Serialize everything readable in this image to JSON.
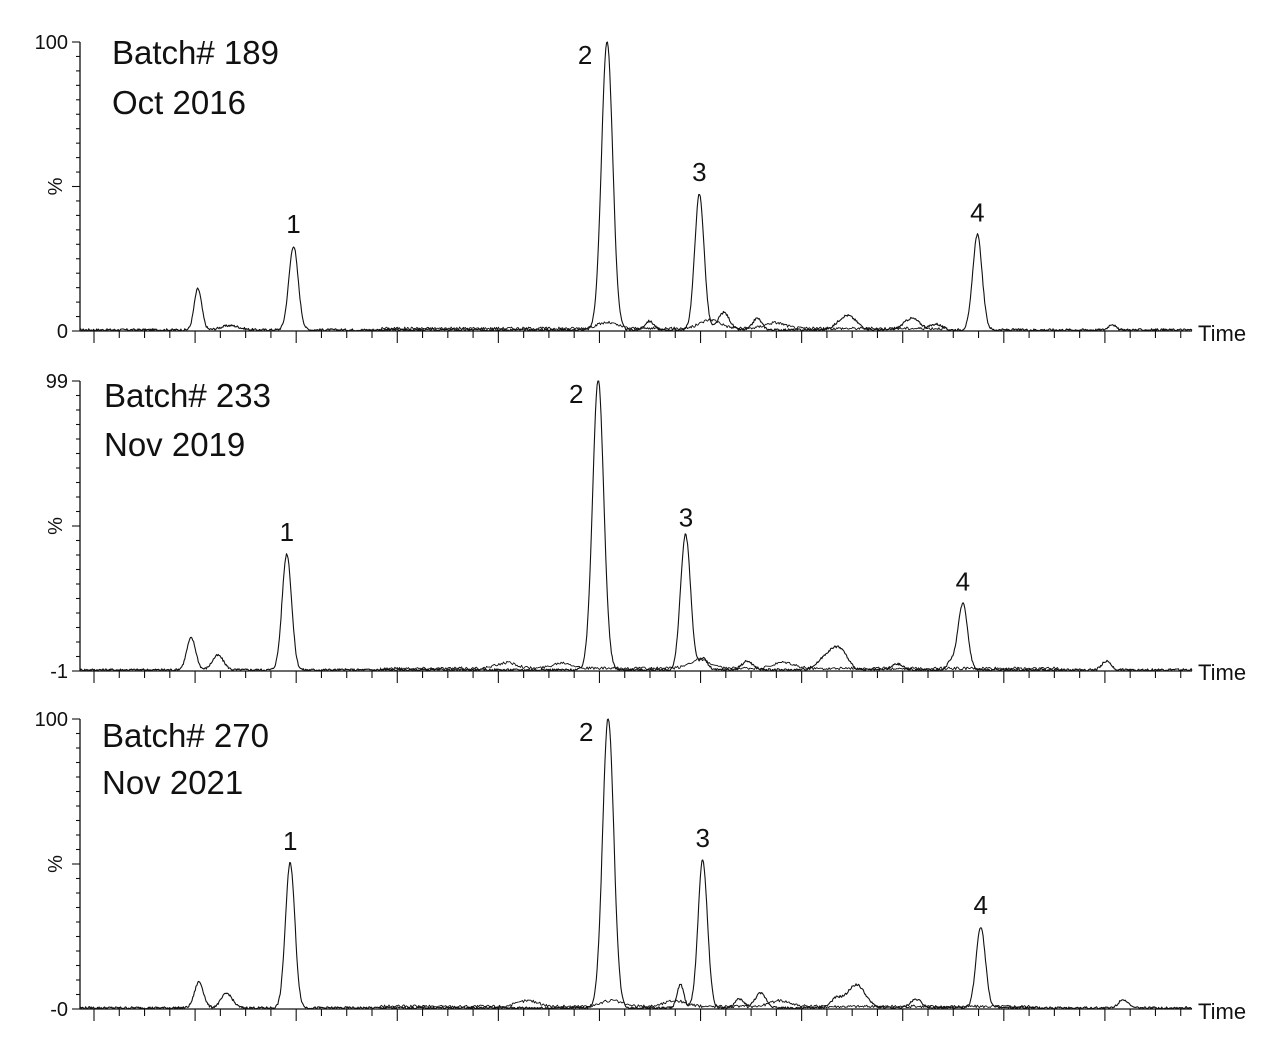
{
  "chart_data": [
    {
      "type": "line",
      "title": "Batch# 189",
      "subtitle": "Oct 2016",
      "xlabel": "Time",
      "ylabel": "%",
      "yticks": [
        "100",
        "0"
      ],
      "ylim": [
        0,
        100
      ],
      "xlim": [
        0,
        100
      ],
      "peaks": [
        {
          "label": "1",
          "x": 19.2,
          "height": 29
        },
        {
          "label": "2",
          "x": 47.4,
          "height": 100
        },
        {
          "label": "3",
          "x": 55.7,
          "height": 47
        },
        {
          "label": "4",
          "x": 80.7,
          "height": 33
        }
      ],
      "minor_peaks": [
        {
          "x": 10.5,
          "height": 10,
          "width": 0.3
        },
        {
          "x": 10.8,
          "height": 6,
          "width": 0.3
        },
        {
          "x": 13.5,
          "height": 1.5,
          "width": 0.8
        },
        {
          "x": 51.2,
          "height": 3,
          "width": 0.4
        },
        {
          "x": 57.9,
          "height": 6,
          "width": 0.5
        },
        {
          "x": 60.9,
          "height": 4,
          "width": 0.4
        },
        {
          "x": 69.0,
          "height": 5,
          "width": 0.8
        },
        {
          "x": 74.8,
          "height": 4,
          "width": 0.7
        },
        {
          "x": 77.0,
          "height": 2,
          "width": 0.5
        },
        {
          "x": 92.8,
          "height": 2,
          "width": 0.3
        }
      ],
      "secondary_trace": {
        "x_start": 27,
        "x_end": 78,
        "peaks": [
          {
            "x": 47.4,
            "height": 2
          },
          {
            "x": 56.7,
            "height": 3
          },
          {
            "x": 62.5,
            "height": 2
          }
        ]
      }
    },
    {
      "type": "line",
      "title": "Batch# 233",
      "subtitle": "Nov 2019",
      "xlabel": "Time",
      "ylabel": "%",
      "yticks": [
        "99",
        "-1"
      ],
      "ylim": [
        -1,
        99
      ],
      "xlim": [
        0,
        100
      ],
      "peaks": [
        {
          "label": "1",
          "x": 18.6,
          "height": 40
        },
        {
          "label": "2",
          "x": 46.6,
          "height": 100
        },
        {
          "label": "3",
          "x": 54.5,
          "height": 45
        },
        {
          "label": "4",
          "x": 79.4,
          "height": 23
        }
      ],
      "minor_peaks": [
        {
          "x": 10.0,
          "height": 11,
          "width": 0.4
        },
        {
          "x": 12.4,
          "height": 5,
          "width": 0.5
        },
        {
          "x": 54.0,
          "height": 6,
          "width": 0.3
        },
        {
          "x": 56.0,
          "height": 4,
          "width": 0.4
        },
        {
          "x": 60.0,
          "height": 3,
          "width": 0.5
        },
        {
          "x": 67.5,
          "height": 6,
          "width": 0.9
        },
        {
          "x": 68.5,
          "height": 4,
          "width": 0.6
        },
        {
          "x": 73.5,
          "height": 2,
          "width": 0.5
        },
        {
          "x": 78.4,
          "height": 3,
          "width": 0.4
        },
        {
          "x": 92.3,
          "height": 3,
          "width": 0.4
        }
      ],
      "secondary_trace": {
        "x_start": 27,
        "x_end": 88,
        "peaks": [
          {
            "x": 38.4,
            "height": 2
          },
          {
            "x": 43.4,
            "height": 2
          },
          {
            "x": 55.7,
            "height": 3
          },
          {
            "x": 63.3,
            "height": 2
          }
        ]
      }
    },
    {
      "type": "line",
      "title": "Batch# 270",
      "subtitle": "Nov 2021",
      "xlabel": "Time",
      "ylabel": "%",
      "yticks": [
        "100",
        "-0"
      ],
      "ylim": [
        0,
        100
      ],
      "xlim": [
        0,
        100
      ],
      "peaks": [
        {
          "label": "1",
          "x": 18.9,
          "height": 50
        },
        {
          "label": "2",
          "x": 47.5,
          "height": 100
        },
        {
          "label": "3",
          "x": 56.0,
          "height": 51
        },
        {
          "label": "4",
          "x": 81.0,
          "height": 28
        }
      ],
      "minor_peaks": [
        {
          "x": 10.7,
          "height": 9,
          "width": 0.4
        },
        {
          "x": 13.2,
          "height": 5,
          "width": 0.5
        },
        {
          "x": 54.0,
          "height": 8,
          "width": 0.3
        },
        {
          "x": 59.3,
          "height": 3,
          "width": 0.4
        },
        {
          "x": 61.2,
          "height": 5,
          "width": 0.5
        },
        {
          "x": 69.8,
          "height": 8,
          "width": 0.8
        },
        {
          "x": 68.0,
          "height": 3,
          "width": 0.5
        },
        {
          "x": 75.2,
          "height": 3,
          "width": 0.5
        },
        {
          "x": 93.8,
          "height": 3,
          "width": 0.4
        }
      ],
      "secondary_trace": {
        "x_start": 27,
        "x_end": 86,
        "peaks": [
          {
            "x": 40.3,
            "height": 2
          },
          {
            "x": 47.8,
            "height": 2
          },
          {
            "x": 53.5,
            "height": 2
          },
          {
            "x": 63.0,
            "height": 2
          }
        ]
      }
    }
  ]
}
